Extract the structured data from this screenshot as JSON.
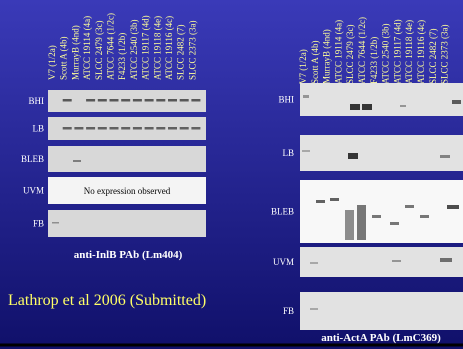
{
  "left_panel": {
    "lanes": [
      "V7 (1/2a)",
      "Scott A (4b)",
      "MurrayB (4nd)",
      "ATCC 19114 (4a)",
      "SLCC 2479 (3c)",
      "ATCC 7644 (1/2c)",
      "F4233 (1/2b)",
      "ATCC 2540 (3b)",
      "ATCC 19117 (4d)",
      "ATCC 19118 (4e)",
      "ATCC 19116 (4c)",
      "SLCC 2482 (7)",
      "SLCC 2373 (3a)"
    ],
    "rows": [
      "BHI",
      "LB",
      "BLEB",
      "UVM",
      "FB"
    ],
    "note": "No expression observed",
    "caption": "anti-InlB PAb (Lm404)"
  },
  "right_panel": {
    "lanes": [
      "V7 (1/2a)",
      "Scott A (4b)",
      "MurrayB (4nd)",
      "ATCC 19114 (4a)",
      "SLCC 2479 (3c)",
      "ATCC 7644 (1/2c)",
      "F4233 (1/2b)",
      "ATCC 2540 (3b)",
      "ATCC 19117 (4d)",
      "ATCC 19118 (4e)",
      "ATCC 19116 (4c)",
      "SLCC 2482 (7)",
      "SLCC 2373 (3a)"
    ],
    "rows": [
      "BHI",
      "LB",
      "BLEB",
      "UVM",
      "FB"
    ],
    "caption": "anti-ActA PAb (LmC369)"
  },
  "citation": "Lathrop et al 2006 (Submitted)"
}
